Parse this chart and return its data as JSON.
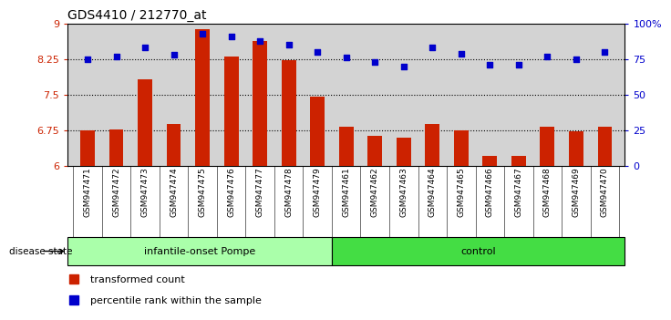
{
  "title": "GDS4410 / 212770_at",
  "samples": [
    "GSM947471",
    "GSM947472",
    "GSM947473",
    "GSM947474",
    "GSM947475",
    "GSM947476",
    "GSM947477",
    "GSM947478",
    "GSM947479",
    "GSM947461",
    "GSM947462",
    "GSM947463",
    "GSM947464",
    "GSM947465",
    "GSM947466",
    "GSM947467",
    "GSM947468",
    "GSM947469",
    "GSM947470"
  ],
  "red_values": [
    6.75,
    6.76,
    7.82,
    6.88,
    8.88,
    8.3,
    8.63,
    8.23,
    7.45,
    6.83,
    6.63,
    6.6,
    6.88,
    6.74,
    6.2,
    6.2,
    6.82,
    6.73,
    6.82
  ],
  "blue_values": [
    75,
    77,
    83,
    78,
    93,
    91,
    88,
    85,
    80,
    76,
    73,
    70,
    83,
    79,
    71,
    71,
    77,
    75,
    80
  ],
  "ylim_left": [
    6,
    9
  ],
  "ylim_right": [
    0,
    100
  ],
  "yticks_left": [
    6,
    6.75,
    7.5,
    8.25,
    9
  ],
  "yticks_left_labels": [
    "6",
    "6.75",
    "7.5",
    "8.25",
    "9"
  ],
  "yticks_right": [
    0,
    25,
    50,
    75,
    100
  ],
  "yticks_right_labels": [
    "0",
    "25",
    "50",
    "75",
    "100%"
  ],
  "hlines": [
    6.75,
    7.5,
    8.25
  ],
  "bar_color": "#cc2200",
  "dot_color": "#0000cc",
  "plot_bg_color": "#d3d3d3",
  "tick_label_color_left": "#cc2200",
  "tick_label_color_right": "#0000cc",
  "group1_label": "infantile-onset Pompe",
  "group2_label": "control",
  "group1_n": 9,
  "group2_n": 10,
  "group1_color": "#aaffaa",
  "group2_color": "#44dd44",
  "disease_state_label": "disease state",
  "legend_items": [
    "transformed count",
    "percentile rank within the sample"
  ],
  "bar_width": 0.5,
  "fig_bg": "#ffffff"
}
